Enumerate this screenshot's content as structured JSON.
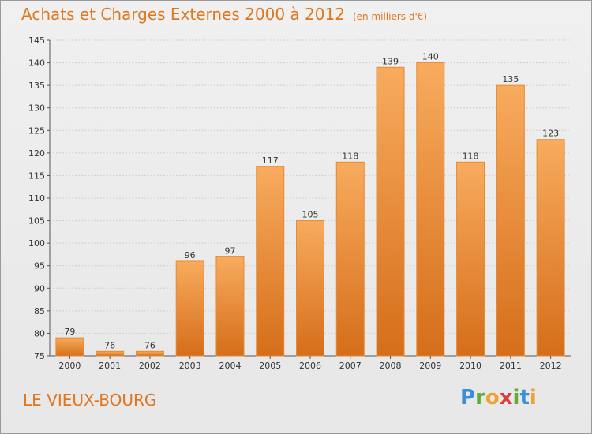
{
  "header": {
    "title": "Achats et Charges Externes 2000 à 2012",
    "subtitle": "(en milliers d'€)"
  },
  "footer": {
    "commune": "LE VIEUX-BOURG",
    "logo_text": "Proxiti"
  },
  "colors": {
    "title": "#e2761f",
    "bar_top": "#f7a75a",
    "bar_bottom": "#d9701c",
    "bar_stroke": "#e88a30"
  },
  "chart_data": {
    "type": "bar",
    "title": "Achats et Charges Externes 2000 à 2012",
    "subtitle": "(en milliers d'€)",
    "xlabel": "",
    "ylabel": "",
    "categories": [
      "2000",
      "2001",
      "2002",
      "2003",
      "2004",
      "2005",
      "2006",
      "2007",
      "2008",
      "2009",
      "2010",
      "2011",
      "2012"
    ],
    "values": [
      79,
      76,
      76,
      96,
      97,
      117,
      105,
      118,
      139,
      140,
      118,
      135,
      123
    ],
    "ylim": [
      75,
      145
    ],
    "yticks": [
      75,
      80,
      85,
      90,
      95,
      100,
      105,
      110,
      115,
      120,
      125,
      130,
      135,
      140,
      145
    ],
    "grid": "horizontal",
    "data_labels": true
  }
}
